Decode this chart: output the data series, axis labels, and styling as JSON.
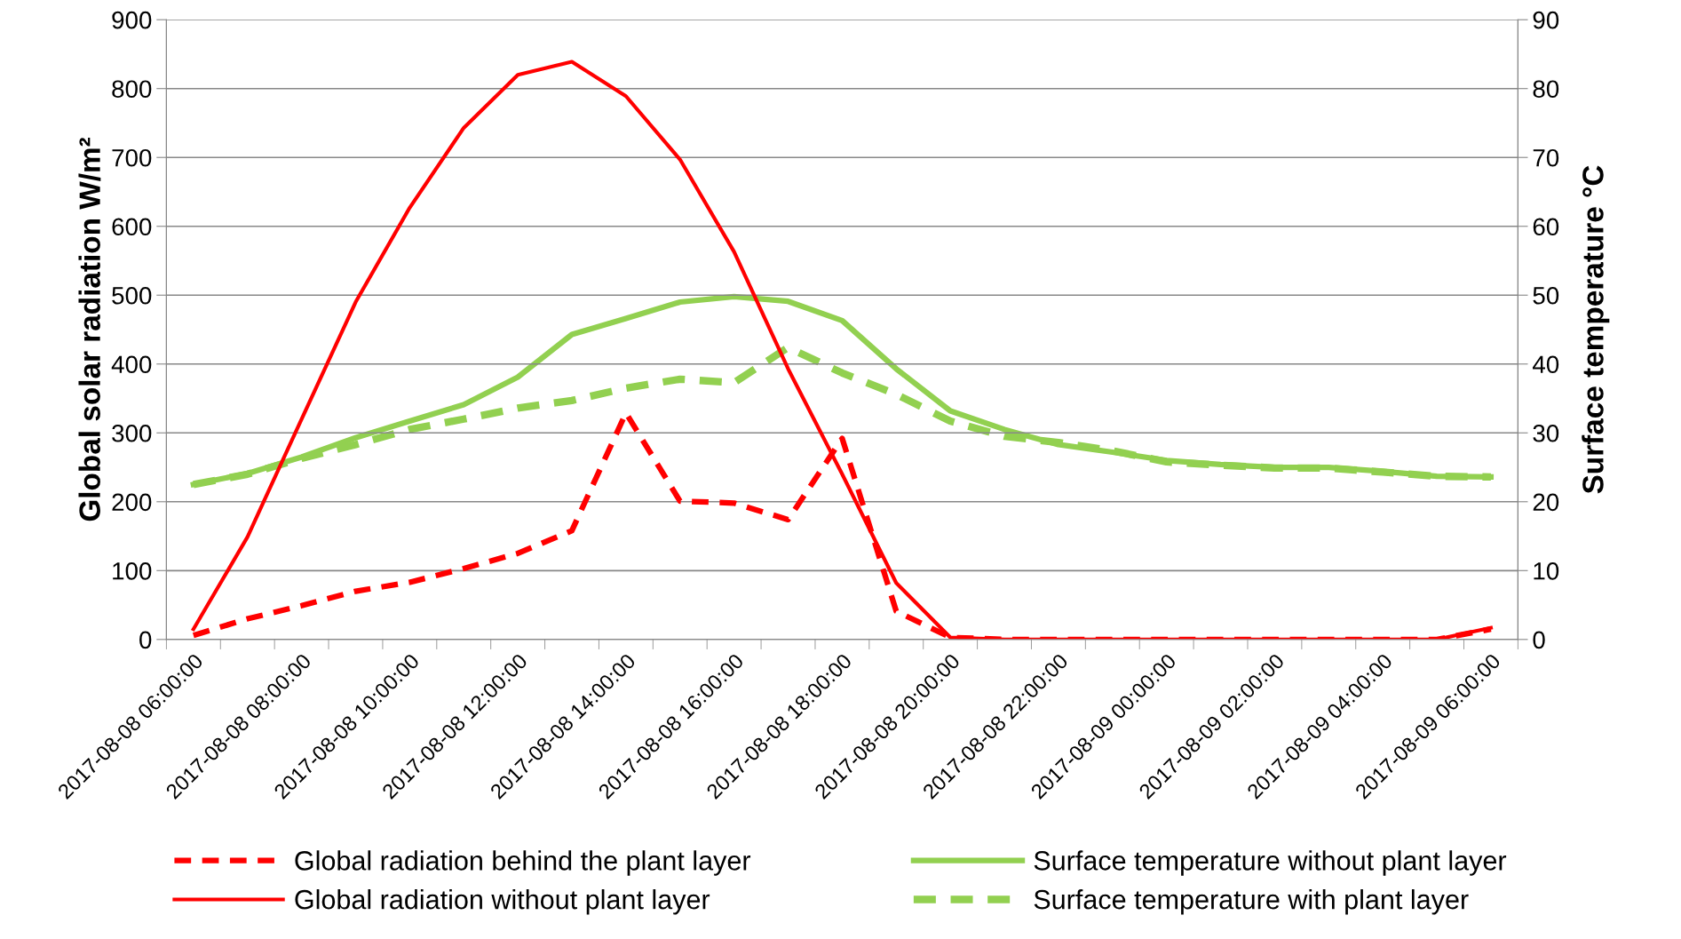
{
  "chart_data": {
    "type": "line",
    "categories": [
      "2017-08-08 06:00:00",
      null,
      "2017-08-08 08:00:00",
      null,
      "2017-08-08 10:00:00",
      null,
      "2017-08-08 12:00:00",
      null,
      "2017-08-08 14:00:00",
      null,
      "2017-08-08 16:00:00",
      null,
      "2017-08-08 18:00:00",
      null,
      "2017-08-08 20:00:00",
      null,
      "2017-08-08 22:00:00",
      null,
      "2017-08-09 00:00:00",
      null,
      "2017-08-09 02:00:00",
      null,
      "2017-08-09 04:00:00",
      null,
      "2017-08-09 06:00:00"
    ],
    "ylabel": "Global solar radiation W/m²",
    "y2label": "Surface temperature °C",
    "ylim": [
      0,
      900
    ],
    "yticks": [
      0,
      100,
      200,
      300,
      400,
      500,
      600,
      700,
      800,
      900
    ],
    "y2lim": [
      0,
      90
    ],
    "y2ticks": [
      0,
      10,
      20,
      30,
      40,
      50,
      60,
      70,
      80,
      90
    ],
    "grid": "y",
    "legend": "bottom",
    "series": [
      {
        "name": "Global radiation behind the plant layer",
        "color": "#ff0000",
        "line_style": "dashed",
        "values": [
          6,
          30,
          49,
          70,
          83,
          103,
          125,
          158,
          329,
          201,
          198,
          174,
          292,
          41,
          3,
          0,
          0,
          0,
          0,
          0,
          0,
          0,
          0,
          0,
          15
        ]
      },
      {
        "name": "Global radiation without plant layer",
        "color": "#ff0000",
        "line_style": "solid",
        "values": [
          15,
          149,
          320,
          490,
          627,
          743,
          820,
          839,
          789,
          697,
          563,
          393,
          240,
          82,
          3,
          0,
          0,
          0,
          0,
          0,
          0,
          0,
          0,
          0,
          17
        ]
      },
      {
        "name": "Surface temperature without plant layer",
        "color": "#92d050",
        "line_style": "solid",
        "axis": "y2",
        "values": [
          22.5,
          24.1,
          26.5,
          29.3,
          31.7,
          34.1,
          38.1,
          44.3,
          46.6,
          49.0,
          49.8,
          49.1,
          46.3,
          39.3,
          33.2,
          30.5,
          28.3,
          27.2,
          26.0,
          25.4,
          25.0,
          25.0,
          24.4,
          23.7,
          23.6
        ]
      },
      {
        "name": "Surface temperature with plant layer",
        "color": "#92d050",
        "line_style": "dashed",
        "axis": "y2",
        "values": [
          22.5,
          24.0,
          26.3,
          28.3,
          30.5,
          32.0,
          33.6,
          34.7,
          36.5,
          37.8,
          37.3,
          42.4,
          38.7,
          35.6,
          31.7,
          29.5,
          28.6,
          27.4,
          25.8,
          25.3,
          24.9,
          24.9,
          24.3,
          23.7,
          23.6
        ]
      }
    ]
  }
}
